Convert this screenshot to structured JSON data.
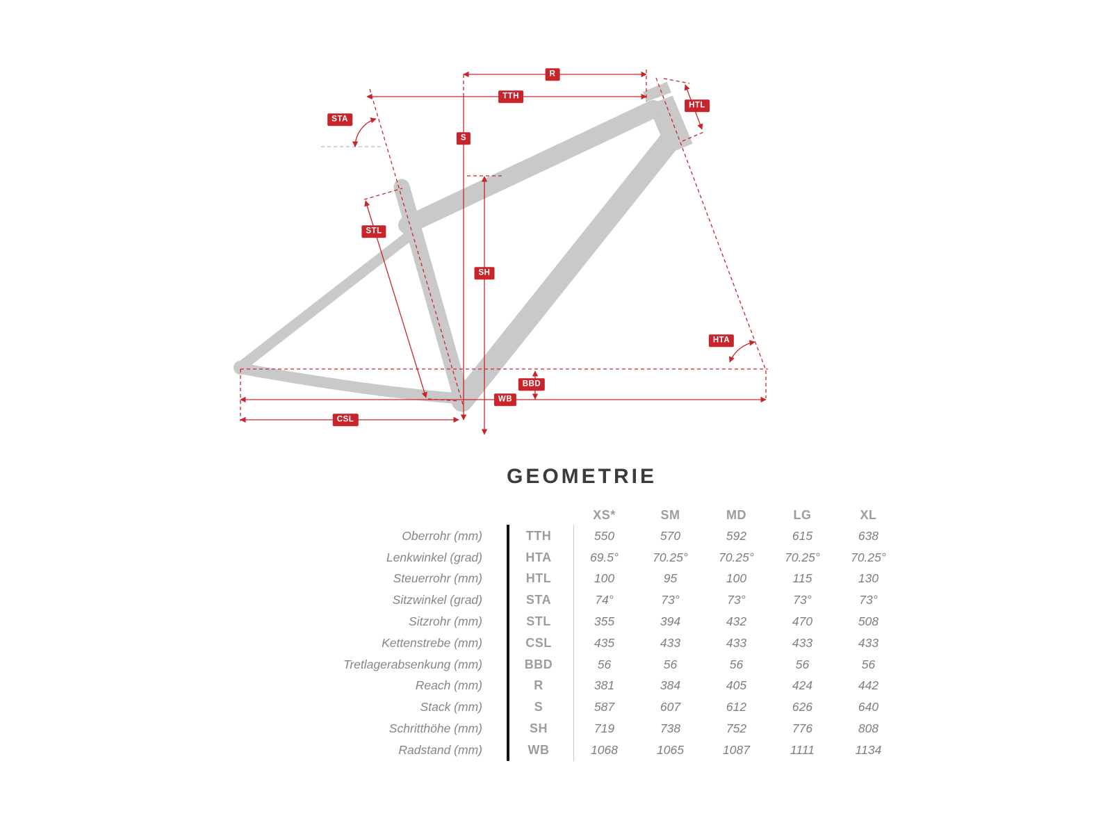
{
  "diagram": {
    "accent_color": "#c8242b",
    "frame_color": "#c9c9c9",
    "labels": {
      "r": "R",
      "tth": "TTH",
      "htl": "HTL",
      "sta": "STA",
      "s": "S",
      "stl": "STL",
      "sh": "SH",
      "hta": "HTA",
      "bbd": "BBD",
      "wb": "WB",
      "csl": "CSL"
    }
  },
  "table": {
    "title": "GEOMETRIE",
    "size_headers": [
      "XS*",
      "SM",
      "MD",
      "LG",
      "XL"
    ],
    "rows": [
      {
        "label": "Oberrohr (mm)",
        "abbr": "TTH",
        "values": [
          "550",
          "570",
          "592",
          "615",
          "638"
        ]
      },
      {
        "label": "Lenkwinkel (grad)",
        "abbr": "HTA",
        "values": [
          "69.5°",
          "70.25°",
          "70.25°",
          "70.25°",
          "70.25°"
        ]
      },
      {
        "label": "Steuerrohr (mm)",
        "abbr": "HTL",
        "values": [
          "100",
          "95",
          "100",
          "115",
          "130"
        ]
      },
      {
        "label": "Sitzwinkel (grad)",
        "abbr": "STA",
        "values": [
          "74°",
          "73°",
          "73°",
          "73°",
          "73°"
        ]
      },
      {
        "label": "Sitzrohr (mm)",
        "abbr": "STL",
        "values": [
          "355",
          "394",
          "432",
          "470",
          "508"
        ]
      },
      {
        "label": "Kettenstrebe (mm)",
        "abbr": "CSL",
        "values": [
          "435",
          "433",
          "433",
          "433",
          "433"
        ]
      },
      {
        "label": "Tretlagerabsenkung (mm)",
        "abbr": "BBD",
        "values": [
          "56",
          "56",
          "56",
          "56",
          "56"
        ]
      },
      {
        "label": "Reach (mm)",
        "abbr": "R",
        "values": [
          "381",
          "384",
          "405",
          "424",
          "442"
        ]
      },
      {
        "label": "Stack (mm)",
        "abbr": "S",
        "values": [
          "587",
          "607",
          "612",
          "626",
          "640"
        ]
      },
      {
        "label": "Schritthöhe (mm)",
        "abbr": "SH",
        "values": [
          "719",
          "738",
          "752",
          "776",
          "808"
        ]
      },
      {
        "label": "Radstand (mm)",
        "abbr": "WB",
        "values": [
          "1068",
          "1065",
          "1087",
          "1111",
          "1134"
        ]
      }
    ]
  }
}
